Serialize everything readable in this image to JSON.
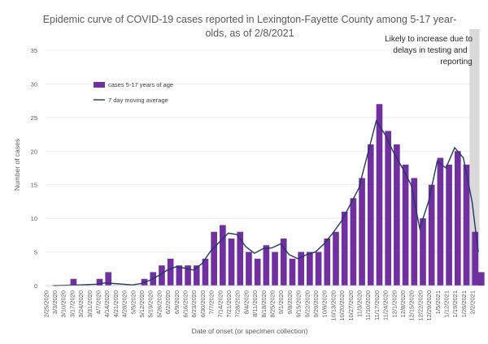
{
  "chart_data": {
    "type": "bar",
    "title_lines": [
      "Epidemic curve of COVID-19 cases reported in Lexington-Fayette County among 5-17 year-",
      "olds, as of 2/8/2021"
    ],
    "xlabel": "Date of onset (or specimen collection)",
    "ylabel": "Number of cases",
    "ylim": [
      0,
      35
    ],
    "yticks": [
      0,
      5,
      10,
      15,
      20,
      25,
      30,
      35
    ],
    "xlim": [
      "2/25/2020",
      "2/7/2021"
    ],
    "xtick_labels": [
      "2/25/2020",
      "3/3/2020",
      "3/10/2020",
      "3/17/2020",
      "3/24/2020",
      "3/31/2020",
      "4/7/2020",
      "4/14/2020",
      "4/21/2020",
      "4/28/2020",
      "5/5/2020",
      "5/12/2020",
      "5/19/2020",
      "5/26/2020",
      "6/2/2020",
      "6/9/2020",
      "6/16/2020",
      "6/23/2020",
      "6/30/2020",
      "7/7/2020",
      "7/14/2020",
      "7/21/2020",
      "7/28/2020",
      "8/4/2020",
      "8/11/2020",
      "8/18/2020",
      "8/25/2020",
      "9/1/2020",
      "9/8/2020",
      "9/15/2020",
      "9/22/2020",
      "9/29/2020",
      "10/6/2020",
      "10/13/2020",
      "10/20/2020",
      "10/27/2020",
      "11/3/2020",
      "11/10/2020",
      "11/17/2020",
      "11/24/2020",
      "12/1/2020",
      "12/8/2020",
      "12/15/2020",
      "12/22/2020",
      "12/29/2020",
      "1/5/2021",
      "1/12/2021",
      "1/19/2021",
      "1/26/2021",
      "2/2/2021"
    ],
    "grid": "horizontal",
    "legend_position": "upper-left",
    "series": [
      {
        "name": "cases 5-17 years of age",
        "type": "bar",
        "color": "#7030A0",
        "points": [
          [
            "3/2/2020",
            0
          ],
          [
            "3/16/2020",
            1
          ],
          [
            "3/23/2020",
            0
          ],
          [
            "4/6/2020",
            1
          ],
          [
            "4/13/2020",
            2
          ],
          [
            "4/20/2020",
            0
          ],
          [
            "5/12/2020",
            1
          ],
          [
            "5/19/2020",
            2
          ],
          [
            "5/26/2020",
            3
          ],
          [
            "6/2/2020",
            4
          ],
          [
            "6/9/2020",
            3
          ],
          [
            "6/16/2020",
            3
          ],
          [
            "6/23/2020",
            3
          ],
          [
            "6/30/2020",
            4
          ],
          [
            "7/7/2020",
            8
          ],
          [
            "7/14/2020",
            9
          ],
          [
            "7/21/2020",
            7
          ],
          [
            "7/28/2020",
            8
          ],
          [
            "8/4/2020",
            5
          ],
          [
            "8/11/2020",
            4
          ],
          [
            "8/18/2020",
            6
          ],
          [
            "8/25/2020",
            5
          ],
          [
            "9/1/2020",
            7
          ],
          [
            "9/8/2020",
            4
          ],
          [
            "9/15/2020",
            5
          ],
          [
            "9/22/2020",
            5
          ],
          [
            "9/29/2020",
            5
          ],
          [
            "10/6/2020",
            7
          ],
          [
            "10/13/2020",
            8
          ],
          [
            "10/20/2020",
            11
          ],
          [
            "10/27/2020",
            13
          ],
          [
            "11/3/2020",
            16
          ],
          [
            "11/10/2020",
            21
          ],
          [
            "11/17/2020",
            27
          ],
          [
            "11/24/2020",
            23
          ],
          [
            "12/1/2020",
            21
          ],
          [
            "12/8/2020",
            18
          ],
          [
            "12/15/2020",
            16
          ],
          [
            "12/22/2020",
            10
          ],
          [
            "12/29/2020",
            15
          ],
          [
            "1/5/2021",
            19
          ],
          [
            "1/12/2021",
            18
          ],
          [
            "1/19/2021",
            20
          ],
          [
            "1/26/2021",
            18
          ],
          [
            "2/2/2021",
            8
          ],
          [
            "2/7/2021",
            2
          ]
        ]
      },
      {
        "name": "7 day moving average",
        "type": "line",
        "color": "#203864",
        "points": [
          [
            "3/2/2020",
            0
          ],
          [
            "3/23/2020",
            0.1
          ],
          [
            "4/6/2020",
            0.2
          ],
          [
            "4/13/2020",
            0.4
          ],
          [
            "4/20/2020",
            0.3
          ],
          [
            "5/5/2020",
            0.1
          ],
          [
            "5/12/2020",
            0.3
          ],
          [
            "5/19/2020",
            0.8
          ],
          [
            "5/26/2020",
            1.5
          ],
          [
            "6/2/2020",
            2.3
          ],
          [
            "6/9/2020",
            2.8
          ],
          [
            "6/16/2020",
            2.6
          ],
          [
            "6/23/2020",
            2.3
          ],
          [
            "6/30/2020",
            3.3
          ],
          [
            "7/7/2020",
            5.2
          ],
          [
            "7/14/2020",
            6.5
          ],
          [
            "7/21/2020",
            7.8
          ],
          [
            "7/28/2020",
            7.6
          ],
          [
            "8/4/2020",
            5.8
          ],
          [
            "8/11/2020",
            4.8
          ],
          [
            "8/18/2020",
            5.5
          ],
          [
            "8/25/2020",
            5.6
          ],
          [
            "9/1/2020",
            6.2
          ],
          [
            "9/8/2020",
            4.6
          ],
          [
            "9/15/2020",
            4.0
          ],
          [
            "9/22/2020",
            4.6
          ],
          [
            "9/29/2020",
            5.0
          ],
          [
            "10/6/2020",
            6.2
          ],
          [
            "10/13/2020",
            7.8
          ],
          [
            "10/20/2020",
            9.6
          ],
          [
            "10/27/2020",
            12.0
          ],
          [
            "11/3/2020",
            14.5
          ],
          [
            "11/10/2020",
            19.5
          ],
          [
            "11/17/2020",
            24.5
          ],
          [
            "11/24/2020",
            22.5
          ],
          [
            "12/1/2020",
            19.8
          ],
          [
            "12/8/2020",
            17.5
          ],
          [
            "12/15/2020",
            15.0
          ],
          [
            "12/22/2020",
            8.5
          ],
          [
            "12/29/2020",
            12.5
          ],
          [
            "1/5/2021",
            18.5
          ],
          [
            "1/12/2021",
            17.5
          ],
          [
            "1/19/2021",
            20.5
          ],
          [
            "1/26/2021",
            19.0
          ],
          [
            "2/2/2021",
            12.5
          ],
          [
            "2/7/2021",
            5.0
          ]
        ]
      }
    ],
    "annotation": {
      "lines": [
        "Likely to increase due to",
        "delays in testing and",
        "reporting"
      ],
      "shaded_from": "1/31/2021",
      "shaded_to": "2/7/2021"
    }
  }
}
